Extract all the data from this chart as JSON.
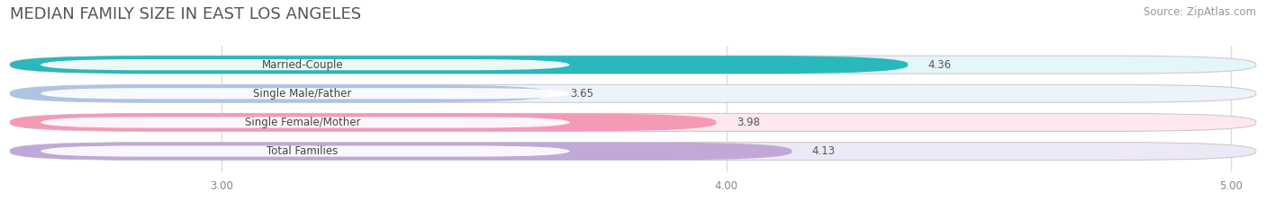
{
  "title": "MEDIAN FAMILY SIZE IN EAST LOS ANGELES",
  "source": "Source: ZipAtlas.com",
  "categories": [
    "Married-Couple",
    "Single Male/Father",
    "Single Female/Mother",
    "Total Families"
  ],
  "values": [
    4.36,
    3.65,
    3.98,
    4.13
  ],
  "bar_colors": [
    "#29b8bc",
    "#adc4e8",
    "#f49ab5",
    "#c0a8d8"
  ],
  "bar_bg_colors": [
    "#e4f6f7",
    "#edf2fb",
    "#fde8f0",
    "#ede8f5"
  ],
  "xlim_min": 2.58,
  "xlim_max": 5.05,
  "xticks": [
    3.0,
    4.0,
    5.0
  ],
  "xtick_labels": [
    "3.00",
    "4.00",
    "5.00"
  ],
  "background_color": "#ffffff",
  "bar_height": 0.62,
  "label_fontsize": 8.5,
  "value_fontsize": 8.5,
  "title_fontsize": 13,
  "source_fontsize": 8.5,
  "grid_color": "#dddddd"
}
